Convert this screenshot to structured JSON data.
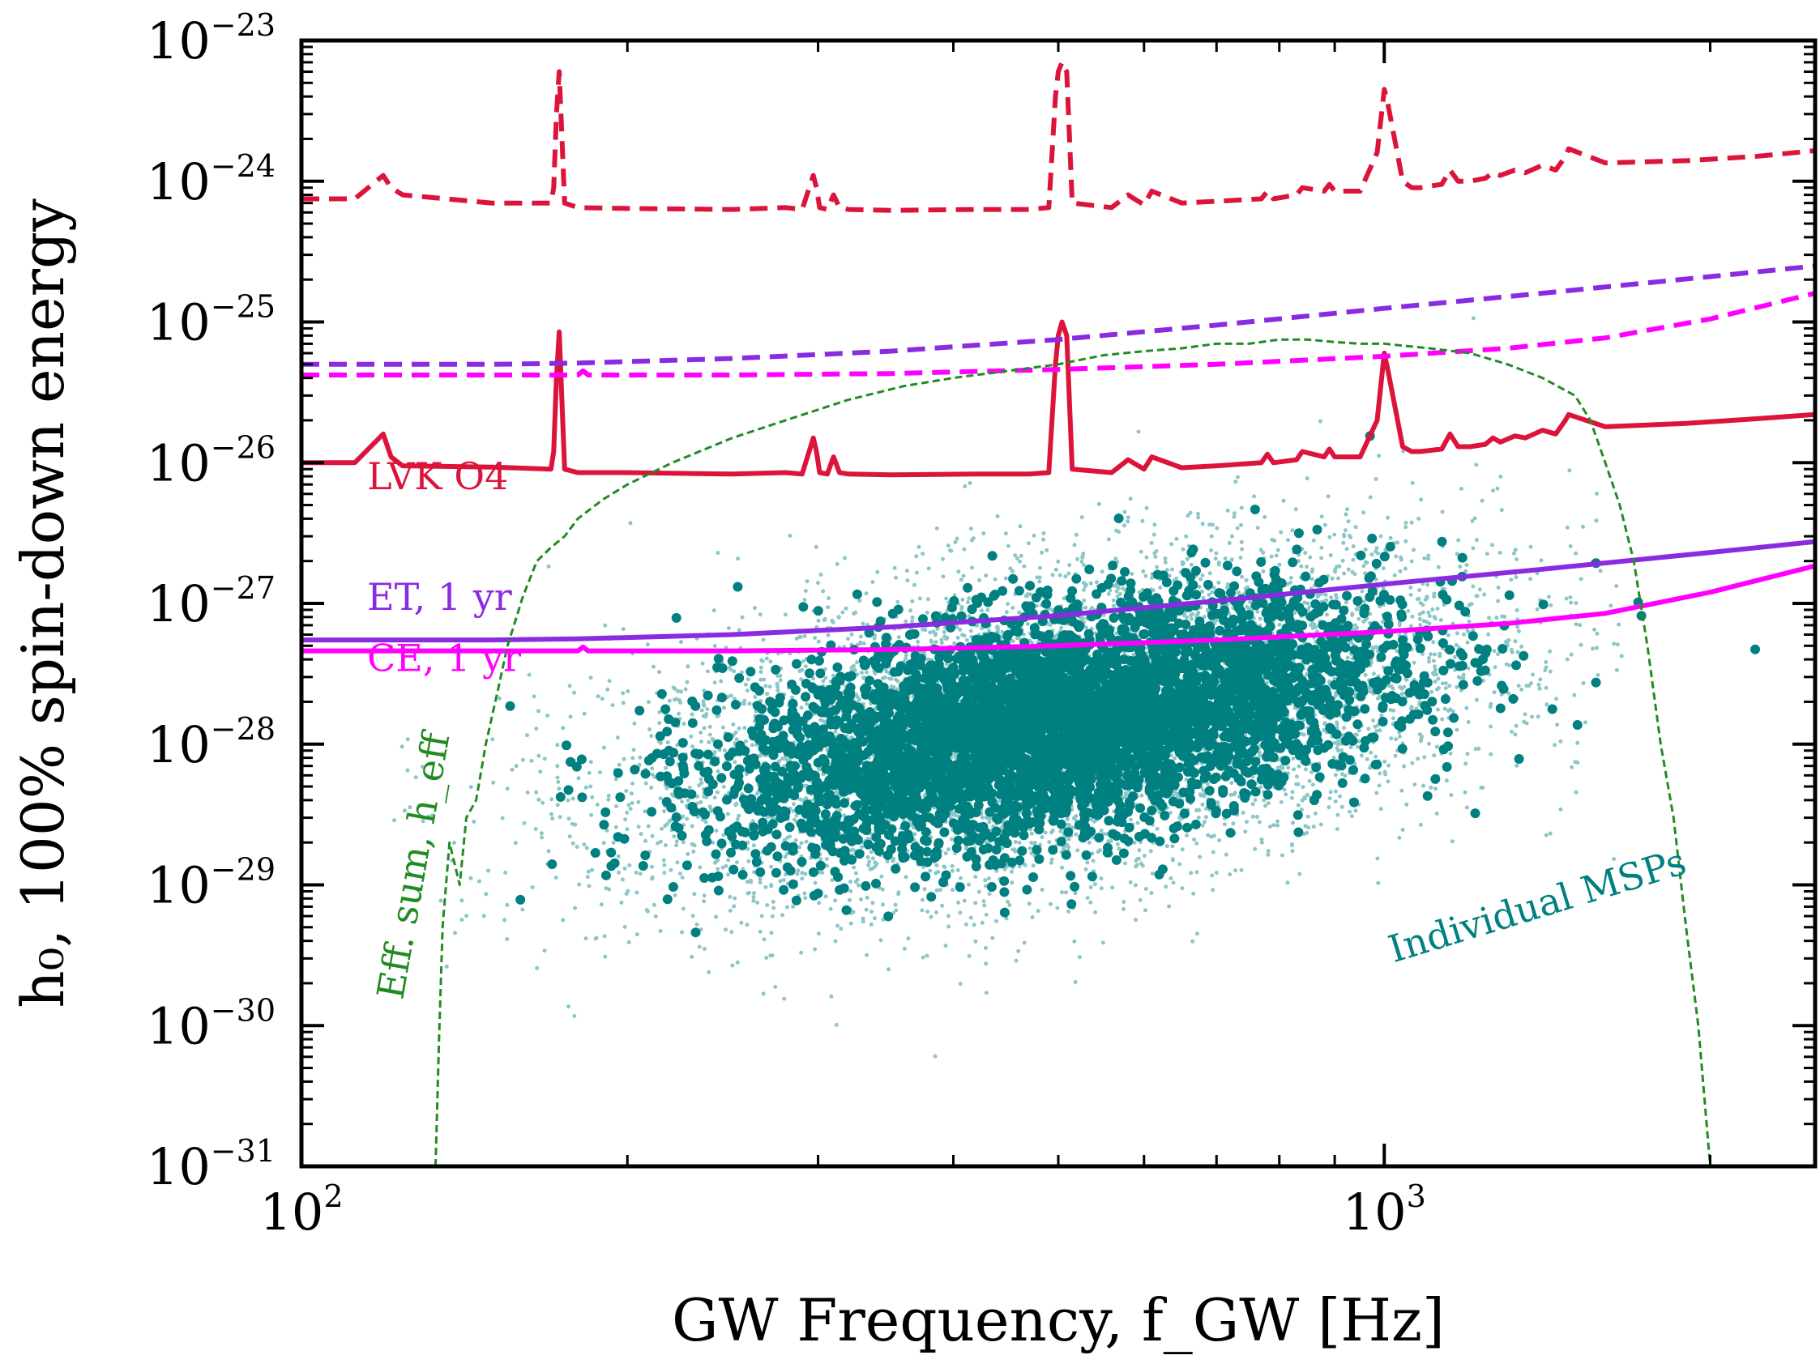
{
  "chart_data": {
    "type": "line",
    "xscale": "log",
    "yscale": "log",
    "xlim": [
      100,
      2500
    ],
    "ylim": [
      1e-31,
      1e-23
    ],
    "xlabel": "GW Frequency,  f_GW [Hz]",
    "ylabel": "h₀, 100% spin-down energy",
    "x_tick_labels": [
      {
        "value": 100,
        "base": "10",
        "exp": "2"
      },
      {
        "value": 1000,
        "base": "10",
        "exp": "3"
      }
    ],
    "y_tick_labels": [
      {
        "value": 1e-23,
        "base": "10",
        "exp": "−23"
      },
      {
        "value": 1e-24,
        "base": "10",
        "exp": "−24"
      },
      {
        "value": 1e-25,
        "base": "10",
        "exp": "−25"
      },
      {
        "value": 1e-26,
        "base": "10",
        "exp": "−26"
      },
      {
        "value": 1e-27,
        "base": "10",
        "exp": "−27"
      },
      {
        "value": 1e-28,
        "base": "10",
        "exp": "−28"
      },
      {
        "value": 1e-29,
        "base": "10",
        "exp": "−29"
      },
      {
        "value": 1e-30,
        "base": "10",
        "exp": "−30"
      },
      {
        "value": 1e-31,
        "base": "10",
        "exp": "−31"
      }
    ],
    "series": [
      {
        "name": "LVK O4 (dashed)",
        "style": "dashed",
        "color": "#dc143c",
        "x": [
          100,
          112,
          119,
          121,
          124,
          150,
          170,
          171,
          172,
          173,
          175,
          180,
          200,
          250,
          280,
          290,
          297,
          299,
          301,
          306,
          310,
          314,
          320,
          350,
          420,
          470,
          490,
          497,
          500,
          504,
          509,
          515,
          560,
          580,
          600,
          610,
          650,
          700,
          770,
          780,
          790,
          830,
          840,
          880,
          890,
          900,
          950,
          985,
          1000,
          1008,
          1040,
          1060,
          1080,
          1130,
          1150,
          1170,
          1200,
          1240,
          1260,
          1280,
          1320,
          1350,
          1400,
          1440,
          1470,
          1480,
          1600,
          1900,
          2200,
          2500
        ],
        "y": [
          7.5e-25,
          7.5e-25,
          1.1e-24,
          9e-25,
          8e-25,
          7e-25,
          7e-25,
          9e-25,
          3e-24,
          6e-24,
          7e-25,
          6.5e-25,
          6.4e-25,
          6.3e-25,
          6.5e-25,
          6.3e-25,
          1.1e-24,
          9e-25,
          6.5e-25,
          6.3e-25,
          8e-25,
          6.5e-25,
          6.3e-25,
          6.2e-25,
          6.3e-25,
          6.3e-25,
          6.5e-25,
          4e-24,
          6e-24,
          7e-24,
          6e-24,
          7e-25,
          6.5e-25,
          8e-25,
          6.8e-25,
          8.5e-25,
          7e-25,
          7.2e-25,
          7.5e-25,
          8.5e-25,
          7.5e-25,
          8e-25,
          9e-25,
          8.5e-25,
          9.5e-25,
          8.5e-25,
          8.5e-25,
          1.6e-24,
          4.5e-24,
          3.5e-24,
          1e-24,
          9e-25,
          9e-25,
          9.5e-25,
          1.2e-24,
          1e-24,
          1e-24,
          1.05e-24,
          1.15e-24,
          1.1e-24,
          1.2e-24,
          1.15e-24,
          1.3e-24,
          1.2e-24,
          1.5e-24,
          1.7e-24,
          1.35e-24,
          1.4e-24,
          1.5e-24,
          1.65e-24
        ]
      },
      {
        "name": "LVK O4",
        "style": "solid",
        "color": "#dc143c",
        "x": [
          100,
          112,
          119,
          121,
          124,
          150,
          170,
          171,
          172,
          173,
          175,
          180,
          200,
          250,
          280,
          290,
          297,
          299,
          301,
          306,
          310,
          314,
          320,
          350,
          420,
          470,
          490,
          497,
          500,
          504,
          509,
          515,
          560,
          580,
          600,
          610,
          650,
          700,
          770,
          780,
          790,
          830,
          840,
          880,
          890,
          900,
          950,
          985,
          1000,
          1008,
          1040,
          1060,
          1080,
          1130,
          1150,
          1170,
          1200,
          1240,
          1260,
          1280,
          1320,
          1350,
          1400,
          1440,
          1470,
          1480,
          1600,
          1900,
          2200,
          2500
        ],
        "y": [
          1e-26,
          1e-26,
          1.6e-26,
          1.1e-26,
          9.5e-27,
          9.3e-27,
          9e-27,
          1.2e-26,
          4e-26,
          8.5e-26,
          9e-27,
          8.5e-27,
          8.5e-27,
          8.3e-27,
          8.5e-27,
          8.3e-27,
          1.5e-26,
          1.2e-26,
          8.5e-27,
          8.3e-27,
          1.1e-26,
          8.5e-27,
          8.3e-27,
          8.2e-27,
          8.3e-27,
          8.3e-27,
          8.5e-27,
          5e-26,
          8e-26,
          1e-25,
          8e-26,
          9e-27,
          8.5e-27,
          1.05e-26,
          9e-27,
          1.1e-26,
          9.2e-27,
          9.5e-27,
          1e-26,
          1.15e-26,
          1e-26,
          1.05e-26,
          1.2e-26,
          1.1e-26,
          1.25e-26,
          1.1e-26,
          1.1e-26,
          2e-26,
          6e-26,
          4.5e-26,
          1.3e-26,
          1.2e-26,
          1.2e-26,
          1.25e-26,
          1.6e-26,
          1.3e-26,
          1.3e-26,
          1.35e-26,
          1.5e-26,
          1.4e-26,
          1.55e-26,
          1.5e-26,
          1.7e-26,
          1.6e-26,
          2e-26,
          2.2e-26,
          1.8e-26,
          1.9e-26,
          2.05e-26,
          2.2e-26
        ]
      },
      {
        "name": "ET (dashed)",
        "style": "dashed",
        "color": "#8a2be2",
        "x": [
          100,
          150,
          180,
          250,
          350,
          500,
          700,
          1000,
          1400,
          2000,
          2500
        ],
        "y": [
          5e-26,
          5e-26,
          5.1e-26,
          5.5e-26,
          6.2e-26,
          7.5e-26,
          9.5e-26,
          1.25e-25,
          1.6e-25,
          2.1e-25,
          2.5e-25
        ]
      },
      {
        "name": "ET, 1 yr",
        "style": "solid",
        "color": "#8a2be2",
        "x": [
          100,
          150,
          180,
          250,
          350,
          500,
          700,
          1000,
          1400,
          2000,
          2500
        ],
        "y": [
          5.5e-28,
          5.5e-28,
          5.6e-28,
          6e-28,
          6.8e-28,
          8.2e-28,
          1.04e-27,
          1.37e-27,
          1.75e-27,
          2.3e-27,
          2.75e-27
        ]
      },
      {
        "name": "CE (dashed)",
        "style": "dashed",
        "color": "#ff00ff",
        "x": [
          100,
          180,
          182,
          184,
          250,
          350,
          500,
          700,
          1000,
          1300,
          1600,
          2000,
          2500
        ],
        "y": [
          4.2e-26,
          4.2e-26,
          4.5e-26,
          4.2e-26,
          4.2e-26,
          4.3e-26,
          4.6e-26,
          5e-26,
          5.7e-26,
          6.5e-26,
          7.7e-26,
          1.05e-25,
          1.6e-25
        ]
      },
      {
        "name": "CE, 1 yr",
        "style": "solid",
        "color": "#ff00ff",
        "x": [
          100,
          180,
          182,
          184,
          250,
          350,
          500,
          700,
          1000,
          1300,
          1600,
          2000,
          2500
        ],
        "y": [
          4.6e-28,
          4.6e-28,
          4.9e-28,
          4.6e-28,
          4.6e-28,
          4.7e-28,
          5e-28,
          5.5e-28,
          6.3e-28,
          7.2e-28,
          8.5e-28,
          1.2e-27,
          1.85e-27
        ]
      },
      {
        "name": "Eff. sum, h_eff",
        "style": "dashed",
        "color": "#228b22",
        "x": [
          133,
          134,
          135,
          137,
          140,
          142,
          145,
          148,
          152,
          155,
          158,
          160,
          165,
          170,
          175,
          180,
          190,
          200,
          220,
          250,
          280,
          320,
          360,
          400,
          450,
          500,
          550,
          600,
          650,
          700,
          750,
          800,
          850,
          900,
          950,
          1000,
          1100,
          1200,
          1300,
          1400,
          1500,
          1550,
          1600,
          1650,
          1700,
          1750,
          1800,
          1850,
          1900,
          1950,
          2000,
          2100,
          2200,
          2300,
          2400,
          2500
        ],
        "y": [
          1e-31,
          8e-31,
          5e-30,
          2e-29,
          1e-29,
          3e-29,
          4e-29,
          1e-28,
          2.5e-28,
          5e-28,
          8e-28,
          1.1e-27,
          2e-27,
          2.5e-27,
          3e-27,
          4e-27,
          5.5e-27,
          7e-27,
          1e-26,
          1.5e-26,
          2e-26,
          2.8e-26,
          3.5e-26,
          4e-26,
          4.5e-26,
          5e-26,
          5.8e-26,
          6.2e-26,
          6.5e-26,
          7e-26,
          7e-26,
          7.5e-26,
          7.5e-26,
          7.2e-26,
          7e-26,
          7e-26,
          6.5e-26,
          6e-26,
          5e-26,
          4e-26,
          3e-26,
          2e-26,
          1e-26,
          5e-27,
          2e-27,
          5e-28,
          1e-28,
          3e-29,
          5e-30,
          1e-30,
          1e-31,
          1e-31,
          1e-31,
          1e-31,
          1e-31,
          1e-31
        ]
      }
    ],
    "scatter_population": {
      "name": "Individual MSPs",
      "color": "#008080",
      "log10_f_range": [
        2.2,
        3.2
      ],
      "log10_h0_range": [
        -29.7,
        -26.0
      ],
      "trend": "h0 rises with f_GW"
    },
    "annotations": [
      {
        "text": "LVK O4",
        "color": "#dc143c",
        "x": 115,
        "y": 6.5e-27,
        "rotate": 0
      },
      {
        "text": "ET, 1 yr",
        "color": "#8a2be2",
        "x": 115,
        "y": 9e-28,
        "rotate": 0
      },
      {
        "text": "CE, 1 yr",
        "color": "#ff00ff",
        "x": 115,
        "y": 3.3e-28,
        "rotate": 0
      },
      {
        "text": "Individual MSPs",
        "color": "#008080",
        "x": 1020,
        "y": 2.8e-30,
        "rotate": -17
      },
      {
        "text": "Eff. sum, h_eff",
        "color": "#228b22",
        "x": 124,
        "y": 1.5e-30,
        "rotate": -80
      }
    ]
  }
}
